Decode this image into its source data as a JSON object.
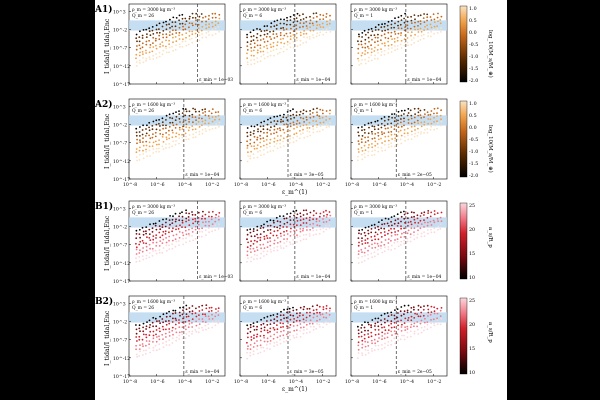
{
  "colors": {
    "band": "#bcd8ee",
    "orange_map": [
      "#000000",
      "#5a2a00",
      "#c2661a",
      "#f0a24a",
      "#fbe2c0"
    ],
    "red_map": [
      "#000000",
      "#7a0a10",
      "#d0202a",
      "#f07a88",
      "#fbd8dc"
    ]
  },
  "ylabel": "I_tidal/I_tidal,Enc",
  "xlabel": "ε_m^(1)",
  "chart_data": {
    "type": "scatter",
    "x_ticks": [
      "10^-8",
      "10^-6",
      "10^-4",
      "10^-2"
    ],
    "y_ticks": [
      "10^3",
      "10^-2",
      "10^-7",
      "10^-12",
      "10^-17"
    ],
    "x_log_range": [
      -8,
      -1
    ],
    "y_log_range": [
      -17,
      5
    ],
    "band_log_range": [
      -2.3,
      0.5
    ],
    "rows": [
      {
        "label": "A1)",
        "colormap": "orange",
        "panels": [
          {
            "rho": "ρ_m = 3000 kg m⁻³",
            "q": "Q_m = 26",
            "emin": "ε_min = 1e−03",
            "emin_log": -3
          },
          {
            "rho": "ρ_m = 3000 kg m⁻³",
            "q": "Q_m = 6",
            "emin": "ε_min = 1e−04",
            "emin_log": -4
          },
          {
            "rho": "ρ_m = 3000 kg m⁻³",
            "q": "Q_m = 1",
            "emin": "ε_min = 1e−04",
            "emin_log": -4
          }
        ]
      },
      {
        "label": "A2)",
        "colormap": "orange",
        "panels": [
          {
            "rho": "ρ_m = 1600 kg m⁻³",
            "q": "Q_m = 26",
            "emin": "ε_min = 1e−04",
            "emin_log": -4
          },
          {
            "rho": "ρ_m = 1600 kg m⁻³",
            "q": "Q_m = 6",
            "emin": "ε_min = 3e−05",
            "emin_log": -4.5
          },
          {
            "rho": "ρ_m = 1600 kg m⁻³",
            "q": "Q_m = 1",
            "emin": "ε_min = 2e−05",
            "emin_log": -4.7
          }
        ]
      },
      {
        "label": "B1)",
        "colormap": "red",
        "panels": [
          {
            "rho": "ρ_m = 3000 kg m⁻³",
            "q": "Q_m = 26",
            "emin": "ε_min = 1e−03",
            "emin_log": -3
          },
          {
            "rho": "ρ_m = 3000 kg m⁻³",
            "q": "Q_m = 6",
            "emin": "ε_min = 1e−04",
            "emin_log": -4
          },
          {
            "rho": "ρ_m = 3000 kg m⁻³",
            "q": "Q_m = 1",
            "emin": "ε_min = 1e−04",
            "emin_log": -4
          }
        ]
      },
      {
        "label": "B2)",
        "colormap": "red",
        "panels": [
          {
            "rho": "ρ_m = 1600 kg m⁻³",
            "q": "Q_m = 26",
            "emin": "ε_min = 1e−04",
            "emin_log": -4
          },
          {
            "rho": "ρ_m = 1600 kg m⁻³",
            "q": "Q_m = 6",
            "emin": "ε_min = 3e−05",
            "emin_log": -4.5
          },
          {
            "rho": "ρ_m = 1600 kg m⁻³",
            "q": "Q_m = 1",
            "emin": "ε_min = 2e−05",
            "emin_log": -4.7
          }
        ]
      }
    ],
    "colorbars": [
      {
        "label": "log_10(M_s/M_⊕)",
        "ticks": [
          "1.0",
          "0.5",
          "0.0",
          "-0.5",
          "-1.0",
          "-1.5",
          "-2.0"
        ],
        "colormap": "orange"
      },
      {
        "label": "log_10(M_s/M_⊕)",
        "ticks": [
          "1.0",
          "0.5",
          "0.0",
          "-0.5",
          "-1.0",
          "-1.5",
          "-2.0"
        ],
        "colormap": "orange"
      },
      {
        "label": "a_s/R_p",
        "ticks": [
          "25",
          "20",
          "15",
          "10"
        ],
        "colormap": "red"
      },
      {
        "label": "a_s/R_p",
        "ticks": [
          "25",
          "20",
          "15",
          "10"
        ],
        "colormap": "red"
      }
    ]
  }
}
